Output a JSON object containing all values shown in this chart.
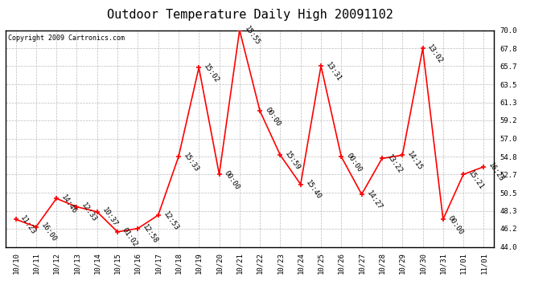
{
  "title": "Outdoor Temperature Daily High 20091102",
  "copyright": "Copyright 2009 Cartronics.com",
  "x_labels": [
    "10/10",
    "10/11",
    "10/12",
    "10/13",
    "10/14",
    "10/15",
    "10/16",
    "10/17",
    "10/18",
    "10/19",
    "10/20",
    "10/21",
    "10/22",
    "10/23",
    "10/24",
    "10/25",
    "10/26",
    "10/27",
    "10/28",
    "10/29",
    "10/30",
    "10/31",
    "11/01",
    "11/01"
  ],
  "y_values": [
    47.3,
    46.4,
    49.8,
    48.8,
    48.2,
    45.8,
    46.2,
    47.8,
    54.8,
    65.5,
    52.7,
    70.0,
    60.3,
    55.0,
    51.5,
    65.7,
    54.8,
    50.3,
    54.6,
    55.0,
    67.8,
    47.3,
    52.7,
    53.6
  ],
  "time_labels": [
    "11:23",
    "16:00",
    "14:46",
    "12:33",
    "10:37",
    "01:02",
    "12:58",
    "12:53",
    "15:33",
    "15:02",
    "00:00",
    "15:55",
    "00:00",
    "15:59",
    "15:40",
    "13:31",
    "00:00",
    "14:27",
    "13:22",
    "14:15",
    "13:02",
    "00:00",
    "15:21",
    "16:23"
  ],
  "ylim_min": 44.0,
  "ylim_max": 70.0,
  "yticks": [
    44.0,
    46.2,
    48.3,
    50.5,
    52.7,
    54.8,
    57.0,
    59.2,
    61.3,
    63.5,
    65.7,
    67.8,
    70.0
  ],
  "line_color": "red",
  "marker_color": "red",
  "bg_color": "white",
  "grid_color": "#bbbbbb",
  "title_fontsize": 11,
  "copyright_fontsize": 6,
  "label_fontsize": 6.5,
  "tick_fontsize": 6.5
}
